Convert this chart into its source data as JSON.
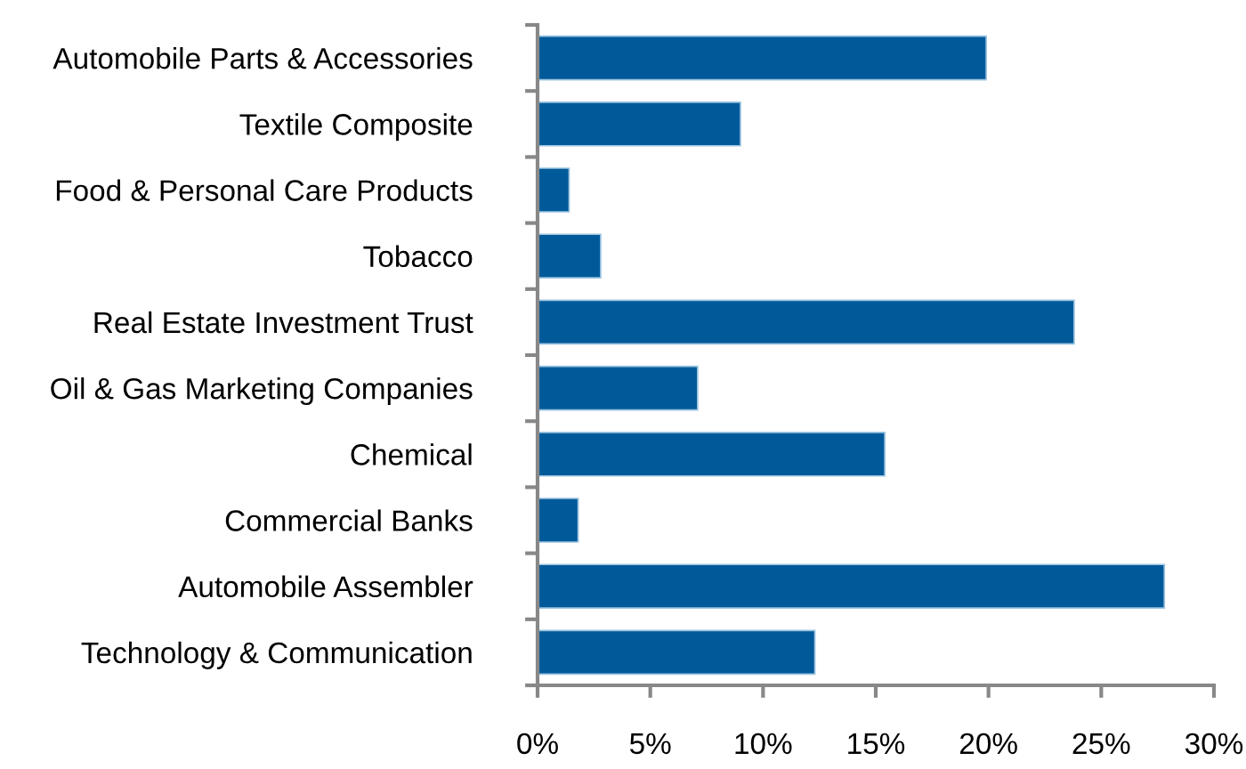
{
  "chart_data": {
    "type": "bar",
    "orientation": "horizontal",
    "categories": [
      "Automobile Parts & Accessories",
      "Textile Composite",
      "Food & Personal Care Products",
      "Tobacco",
      "Real Estate Investment Trust",
      "Oil & Gas Marketing Companies",
      "Chemical",
      "Commercial Banks",
      "Automobile Assembler",
      "Technology & Communication"
    ],
    "values": [
      19.9,
      9.0,
      1.4,
      2.8,
      23.8,
      7.1,
      15.4,
      1.8,
      27.8,
      12.3
    ],
    "color": "#005a9a",
    "xlim": [
      0,
      30
    ],
    "xticks": [
      {
        "value": 0,
        "label": "0%"
      },
      {
        "value": 5,
        "label": "5%"
      },
      {
        "value": 10,
        "label": "10%"
      },
      {
        "value": 15,
        "label": "15%"
      },
      {
        "value": 20,
        "label": "20%"
      },
      {
        "value": 25,
        "label": "25%"
      },
      {
        "value": 30,
        "label": "30%"
      }
    ],
    "grid": false,
    "legend": false
  }
}
